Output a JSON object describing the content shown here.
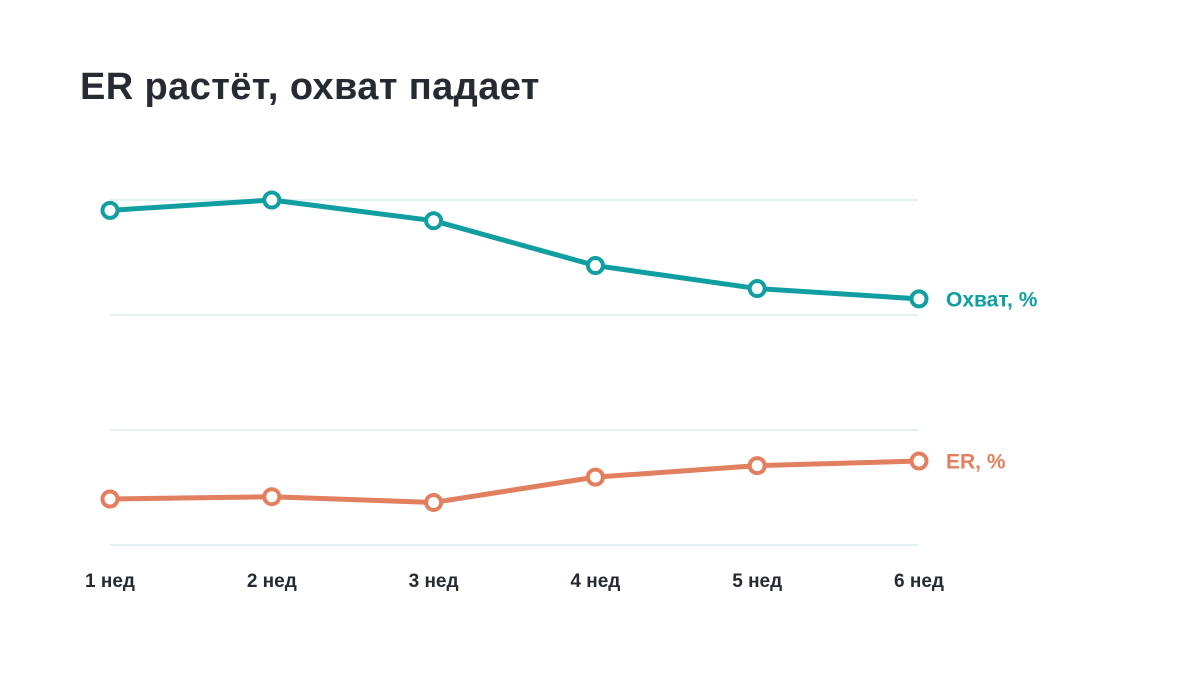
{
  "chart_data": {
    "type": "line",
    "title": "ER растёт, охват падает",
    "xlabel": "",
    "ylabel": "",
    "categories": [
      "1 нед",
      "2 нед",
      "3 нед",
      "4 нед",
      "5 нед",
      "6 нед"
    ],
    "series": [
      {
        "name": "Охват, %",
        "color": "#109ea1",
        "values": [
          2.91,
          3.0,
          2.82,
          2.43,
          2.23,
          2.14
        ]
      },
      {
        "name": "ER, %",
        "color": "#e17f5f",
        "values": [
          0.4,
          0.42,
          0.37,
          0.59,
          0.69,
          0.73
        ]
      }
    ],
    "ylim": [
      0,
      3
    ],
    "grid": true,
    "y_tick_labels_shown": false,
    "legend": "inline-right"
  },
  "colors": {
    "text": "#262b33",
    "grid": "#e2f0f2",
    "background": "#ffffff",
    "marker_fill": "#ffffff"
  }
}
